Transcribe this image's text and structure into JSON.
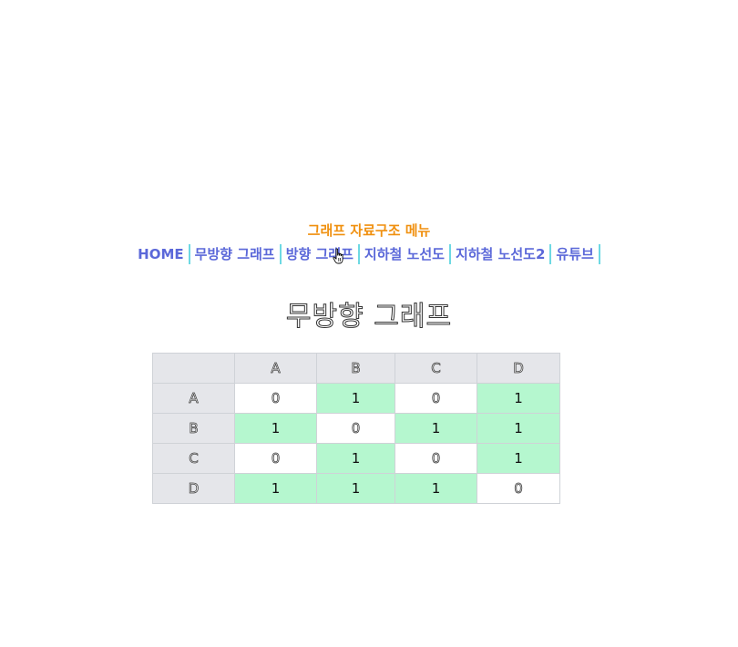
{
  "menu": {
    "title": "그래프 자료구조 메뉴",
    "items": [
      {
        "label": "HOME"
      },
      {
        "label": "무방향 그래프"
      },
      {
        "label": "방향 그래프"
      },
      {
        "label": "지하철 노선도"
      },
      {
        "label": "지하철 노선도2"
      },
      {
        "label": "유튜브"
      }
    ]
  },
  "page": {
    "title": "무방향 그래프"
  },
  "matrix": {
    "headers": [
      "",
      "A",
      "B",
      "C",
      "D"
    ],
    "rows": [
      {
        "label": "A",
        "values": [
          "0",
          "1",
          "0",
          "1"
        ]
      },
      {
        "label": "B",
        "values": [
          "1",
          "0",
          "1",
          "1"
        ]
      },
      {
        "label": "C",
        "values": [
          "0",
          "1",
          "0",
          "1"
        ]
      },
      {
        "label": "D",
        "values": [
          "1",
          "1",
          "1",
          "0"
        ]
      }
    ]
  },
  "colors": {
    "menu_title": "#f0900f",
    "nav_link": "#5b68d9",
    "nav_separator": "#6ed9e3",
    "edge_cell": "#b5f7cf",
    "header_bg": "#e5e6ea"
  },
  "icons": {
    "cursor": "hand-pointer-icon"
  }
}
